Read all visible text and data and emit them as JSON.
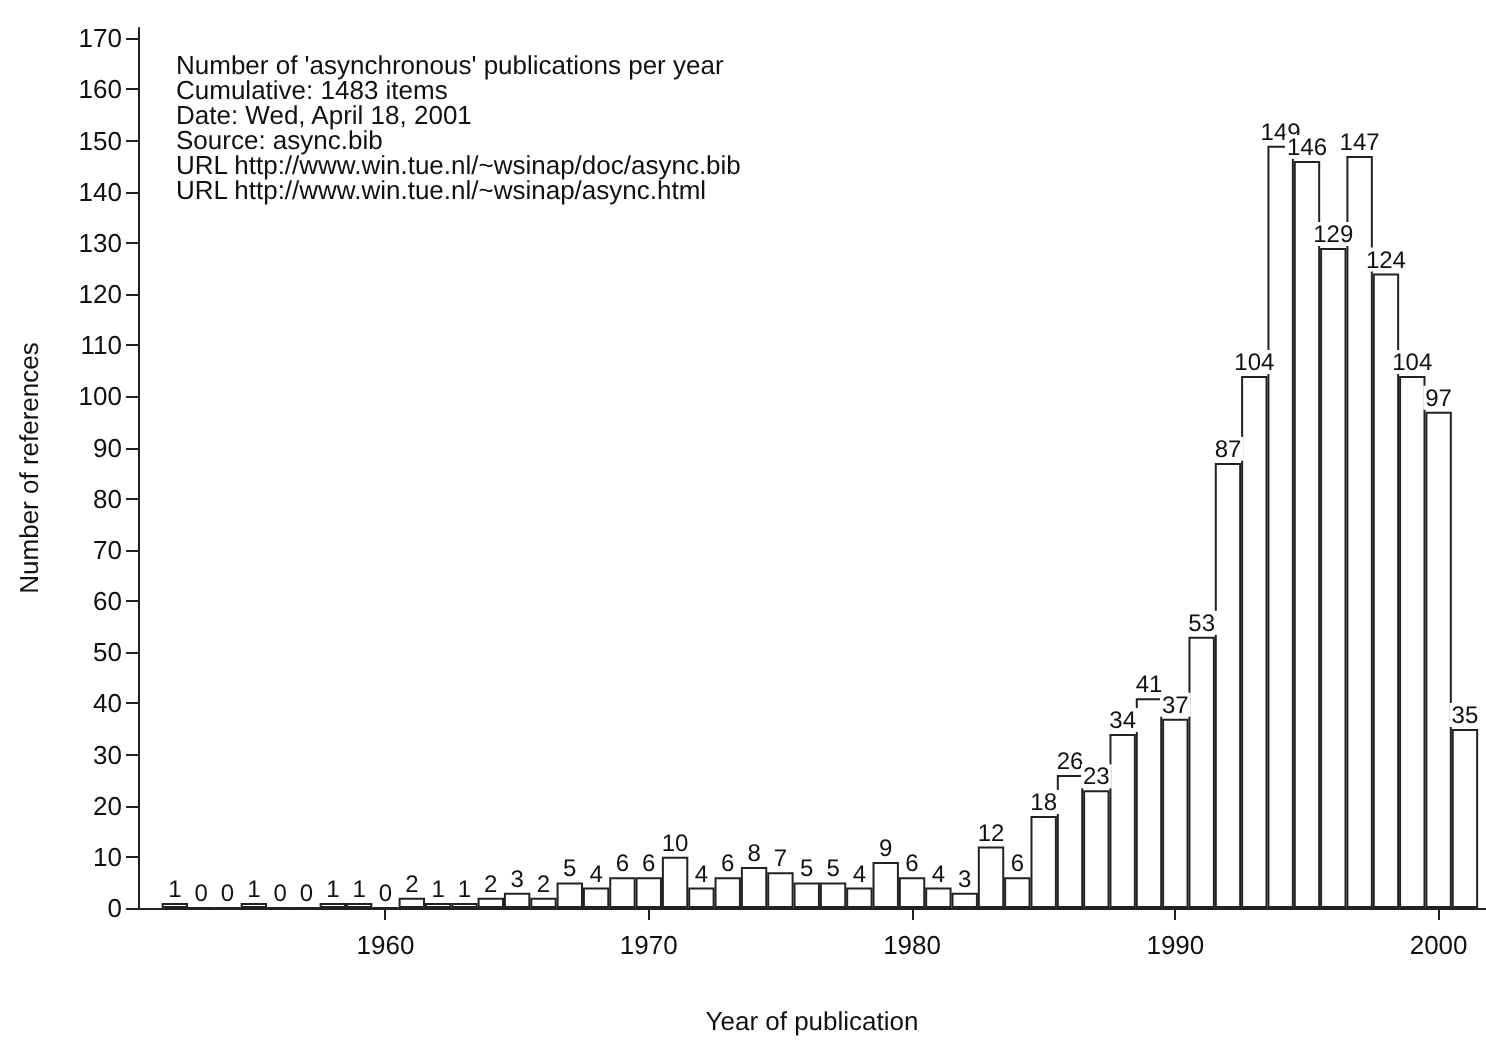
{
  "chart_data": {
    "type": "bar",
    "title": "Number of 'asynchronous' publications per year",
    "annotations": [
      "Cumulative: 1483 items",
      "Date: Wed, April 18, 2001",
      "Source: async.bib",
      "URL http://www.win.tue.nl/~wsinap/doc/async.bib",
      "URL http://www.win.tue.nl/~wsinap/async.html"
    ],
    "xlabel": "Year of publication",
    "ylabel": "Number of references",
    "x": [
      1952,
      1953,
      1954,
      1955,
      1956,
      1957,
      1958,
      1959,
      1960,
      1961,
      1962,
      1963,
      1964,
      1965,
      1966,
      1967,
      1968,
      1969,
      1970,
      1971,
      1972,
      1973,
      1974,
      1975,
      1976,
      1977,
      1978,
      1979,
      1980,
      1981,
      1982,
      1983,
      1984,
      1985,
      1986,
      1987,
      1988,
      1989,
      1990,
      1991,
      1992,
      1993,
      1994,
      1995,
      1996,
      1997,
      1998,
      1999,
      2000,
      2001
    ],
    "values": [
      1,
      0,
      0,
      1,
      0,
      0,
      1,
      1,
      0,
      2,
      1,
      1,
      2,
      3,
      2,
      5,
      4,
      6,
      6,
      10,
      4,
      6,
      8,
      7,
      5,
      5,
      4,
      9,
      6,
      4,
      3,
      12,
      6,
      18,
      26,
      23,
      34,
      41,
      37,
      53,
      87,
      104,
      149,
      146,
      129,
      147,
      124,
      104,
      97,
      35
    ],
    "color": "#ffffff",
    "data_labels": true,
    "grid": false,
    "xlim": [
      1950.6,
      2001.8
    ],
    "xticks": [
      1960,
      1970,
      1980,
      1990,
      2000
    ],
    "ylim": [
      0,
      172
    ],
    "yticks": [
      0,
      10,
      20,
      30,
      40,
      50,
      60,
      70,
      80,
      90,
      100,
      110,
      120,
      130,
      140,
      150,
      160,
      170
    ]
  }
}
